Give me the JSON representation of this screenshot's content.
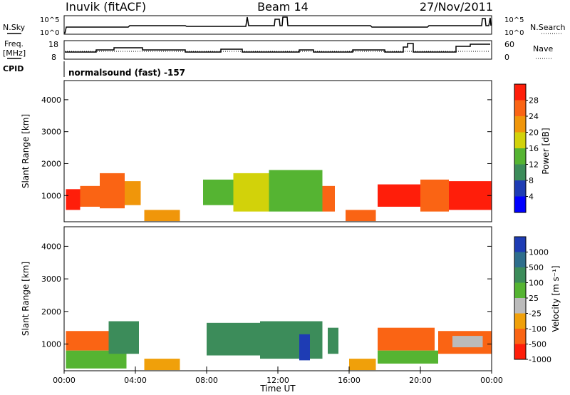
{
  "header": {
    "station": "Inuvik (fitACF)",
    "beam": "Beam 14",
    "date": "27/Nov/2011"
  },
  "status_panel": {
    "nsky_label": "N.Sky",
    "nsearch_label": "N.Search",
    "freq_label": "Freq.",
    "freq_unit": "[MHz]",
    "nave_label": "Nave",
    "cpid_label": "CPID",
    "noise_ticks": [
      "10^5",
      "10^0"
    ],
    "noise_right_ticks": [
      "10^5",
      "10^0"
    ],
    "freq_ticks": [
      "18",
      "8"
    ],
    "nave_ticks": [
      "60",
      "0"
    ],
    "cpid_text": "normalsound (fast) -157"
  },
  "chart_data": [
    {
      "type": "heatmap",
      "name": "power",
      "ylabel": "Slant Range [km]",
      "xlabel": "",
      "xlim": [
        0,
        24
      ],
      "ylim": [
        180,
        4600
      ],
      "yticks": [
        "1000",
        "2000",
        "3000",
        "4000"
      ],
      "colorbar_label": "Power [dB]",
      "colorbar_ticks": [
        "4",
        "8",
        "12",
        "16",
        "20",
        "24",
        "28"
      ],
      "colors": [
        "#0000ff",
        "#1e3cb4",
        "#3c8c5a",
        "#55b432",
        "#d2d20a",
        "#f0960a",
        "#fa6414",
        "#ff1e0a"
      ],
      "cells": [
        {
          "t0": 0.1,
          "t1": 0.9,
          "r0": 550,
          "r1": 1200,
          "level": 7
        },
        {
          "t0": 0.9,
          "t1": 2.0,
          "r0": 650,
          "r1": 1300,
          "level": 6
        },
        {
          "t0": 2.0,
          "t1": 3.4,
          "r0": 600,
          "r1": 1700,
          "level": 6
        },
        {
          "t0": 3.4,
          "t1": 4.3,
          "r0": 700,
          "r1": 1450,
          "level": 5
        },
        {
          "t0": 4.5,
          "t1": 6.5,
          "r0": 200,
          "r1": 550,
          "level": 5
        },
        {
          "t0": 7.8,
          "t1": 9.5,
          "r0": 700,
          "r1": 1500,
          "level": 3
        },
        {
          "t0": 9.5,
          "t1": 11.5,
          "r0": 500,
          "r1": 1700,
          "level": 4
        },
        {
          "t0": 11.5,
          "t1": 14.5,
          "r0": 500,
          "r1": 1800,
          "level": 3
        },
        {
          "t0": 14.5,
          "t1": 15.2,
          "r0": 500,
          "r1": 1300,
          "level": 6
        },
        {
          "t0": 15.8,
          "t1": 17.5,
          "r0": 200,
          "r1": 550,
          "level": 6
        },
        {
          "t0": 17.6,
          "t1": 20.0,
          "r0": 650,
          "r1": 1350,
          "level": 7
        },
        {
          "t0": 20.0,
          "t1": 21.6,
          "r0": 500,
          "r1": 1500,
          "level": 6
        },
        {
          "t0": 21.6,
          "t1": 24.0,
          "r0": 550,
          "r1": 1450,
          "level": 7
        }
      ]
    },
    {
      "type": "heatmap",
      "name": "velocity",
      "ylabel": "Slant Range [km]",
      "xlabel": "Time UT",
      "xlim": [
        0,
        24
      ],
      "ylim": [
        180,
        4600
      ],
      "yticks": [
        "1000",
        "2000",
        "3000",
        "4000"
      ],
      "xticks": [
        "00:00",
        "04:00",
        "08:00",
        "12:00",
        "16:00",
        "20:00",
        "00:00"
      ],
      "colorbar_label": "Velocity [m s⁻¹]",
      "colorbar_ticks": [
        "1000",
        "500",
        "100",
        "25",
        "-25",
        "-100",
        "-500",
        "-1000"
      ],
      "colors": [
        "#1e3cb4",
        "#2e6e8c",
        "#3c8c5a",
        "#55b432",
        "#bbbbbb",
        "#f0a00a",
        "#fa6414",
        "#ff1e0a"
      ],
      "cells": [
        {
          "t0": 0.1,
          "t1": 2.5,
          "r0": 800,
          "r1": 1400,
          "level": 6
        },
        {
          "t0": 0.1,
          "t1": 3.5,
          "r0": 250,
          "r1": 800,
          "level": 3
        },
        {
          "t0": 2.5,
          "t1": 4.2,
          "r0": 700,
          "r1": 1700,
          "level": 2
        },
        {
          "t0": 4.5,
          "t1": 6.5,
          "r0": 200,
          "r1": 550,
          "level": 5
        },
        {
          "t0": 8.0,
          "t1": 11.0,
          "r0": 650,
          "r1": 1650,
          "level": 2
        },
        {
          "t0": 11.0,
          "t1": 14.5,
          "r0": 550,
          "r1": 1700,
          "level": 2
        },
        {
          "t0": 13.2,
          "t1": 13.8,
          "r0": 500,
          "r1": 1300,
          "level": 0
        },
        {
          "t0": 14.8,
          "t1": 15.4,
          "r0": 700,
          "r1": 1500,
          "level": 2
        },
        {
          "t0": 16.0,
          "t1": 17.5,
          "r0": 200,
          "r1": 550,
          "level": 5
        },
        {
          "t0": 17.6,
          "t1": 20.8,
          "r0": 800,
          "r1": 1500,
          "level": 6
        },
        {
          "t0": 17.6,
          "t1": 21.0,
          "r0": 400,
          "r1": 800,
          "level": 3
        },
        {
          "t0": 21.0,
          "t1": 24.0,
          "r0": 700,
          "r1": 1400,
          "level": 6
        },
        {
          "t0": 21.8,
          "t1": 23.5,
          "r0": 900,
          "r1": 1250,
          "level": 4
        }
      ]
    }
  ]
}
